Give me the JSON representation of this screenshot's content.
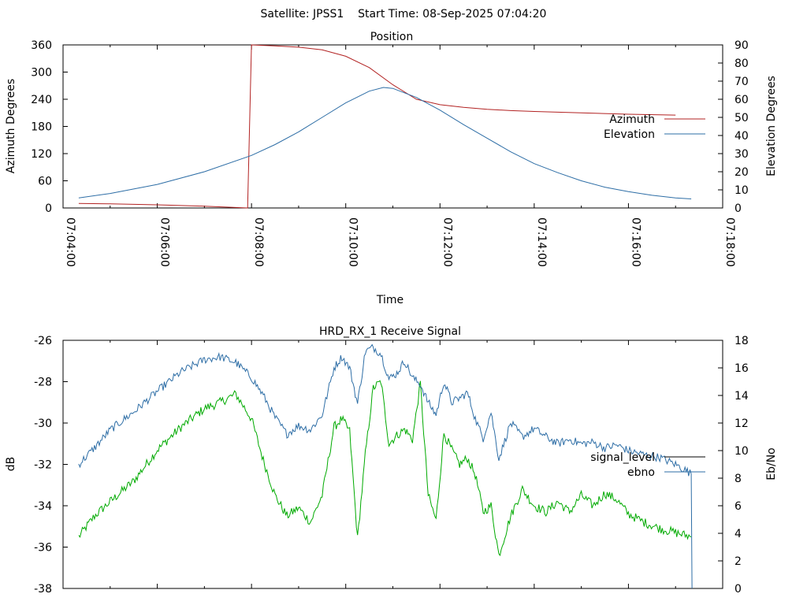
{
  "page": {
    "header": "Satellite: JPSS1    Start Time: 08-Sep-2025 07:04:20"
  },
  "chart_data": [
    {
      "type": "line",
      "title": "Position",
      "xlabel": "Time",
      "ylabel": "Azimuth Degrees",
      "y2label": "Elevation Degrees",
      "xticks": [
        "07:04:00",
        "07:06:00",
        "07:08:00",
        "07:10:00",
        "07:12:00",
        "07:14:00",
        "07:16:00",
        "07:18:00"
      ],
      "xlim": [
        "07:04:00",
        "07:18:00"
      ],
      "ylim": [
        0,
        360
      ],
      "yticks": [
        0,
        60,
        120,
        180,
        240,
        300,
        360
      ],
      "y2lim": [
        0,
        90
      ],
      "y2ticks": [
        0,
        10,
        20,
        30,
        40,
        50,
        60,
        70,
        80,
        90
      ],
      "legend_position": "right",
      "series": [
        {
          "name": "Azimuth",
          "axis": "y",
          "color": "#b22222",
          "x": [
            "07:04:20",
            "07:05:00",
            "07:06:00",
            "07:07:00",
            "07:07:55",
            "07:08:00",
            "07:08:30",
            "07:09:00",
            "07:09:30",
            "07:10:00",
            "07:10:30",
            "07:11:00",
            "07:11:30",
            "07:12:00",
            "07:12:30",
            "07:13:00",
            "07:13:30",
            "07:14:00",
            "07:15:00",
            "07:16:00",
            "07:17:00"
          ],
          "y": [
            10,
            9,
            7,
            4,
            0,
            360,
            358,
            355,
            349,
            335,
            310,
            272,
            240,
            228,
            222,
            218,
            215,
            213,
            210,
            207,
            205
          ]
        },
        {
          "name": "Elevation",
          "axis": "y2",
          "color": "#2e6ea6",
          "x": [
            "07:04:20",
            "07:05:00",
            "07:06:00",
            "07:07:00",
            "07:08:00",
            "07:08:30",
            "07:09:00",
            "07:09:30",
            "07:10:00",
            "07:10:30",
            "07:10:48",
            "07:11:00",
            "07:11:30",
            "07:12:00",
            "07:12:30",
            "07:13:00",
            "07:13:30",
            "07:14:00",
            "07:14:30",
            "07:15:00",
            "07:15:30",
            "07:16:00",
            "07:16:30",
            "07:17:00",
            "07:17:20"
          ],
          "y": [
            5.5,
            8,
            13,
            20,
            29,
            35,
            42,
            50,
            58,
            64.5,
            66.5,
            66,
            61,
            54,
            46,
            38.5,
            31,
            24.5,
            19.5,
            15,
            11.5,
            9,
            7,
            5.5,
            5
          ]
        }
      ]
    },
    {
      "type": "line",
      "title": "HRD_RX_1 Receive Signal",
      "xlabel": "",
      "ylabel": "dB",
      "y2label": "Eb/No",
      "xlim": [
        "07:04:00",
        "07:18:00"
      ],
      "ylim": [
        -38,
        -26
      ],
      "yticks": [
        -38,
        -36,
        -34,
        -32,
        -30,
        -28,
        -26
      ],
      "y2lim": [
        0,
        18
      ],
      "y2ticks": [
        0,
        2,
        4,
        6,
        8,
        10,
        12,
        14,
        16,
        18
      ],
      "legend_position": "right",
      "series": [
        {
          "name": "signal_level",
          "axis": "y",
          "color": "#00aa00",
          "legend_color": "#000000",
          "x": [
            "07:04:20",
            "07:04:40",
            "07:05:00",
            "07:05:30",
            "07:06:00",
            "07:06:30",
            "07:07:00",
            "07:07:20",
            "07:07:40",
            "07:08:00",
            "07:08:15",
            "07:08:30",
            "07:08:45",
            "07:09:00",
            "07:09:15",
            "07:09:30",
            "07:09:45",
            "07:09:55",
            "07:10:05",
            "07:10:15",
            "07:10:25",
            "07:10:35",
            "07:10:45",
            "07:10:55",
            "07:11:05",
            "07:11:15",
            "07:11:25",
            "07:11:35",
            "07:11:45",
            "07:11:55",
            "07:12:05",
            "07:12:15",
            "07:12:25",
            "07:12:35",
            "07:12:45",
            "07:12:55",
            "07:13:05",
            "07:13:15",
            "07:13:30",
            "07:13:45",
            "07:14:00",
            "07:14:15",
            "07:14:30",
            "07:14:45",
            "07:15:00",
            "07:15:15",
            "07:15:30",
            "07:15:45",
            "07:16:00",
            "07:16:20",
            "07:16:40",
            "07:17:00",
            "07:17:20"
          ],
          "y": [
            -35.5,
            -34.5,
            -33.8,
            -32.8,
            -31.3,
            -30.2,
            -29.3,
            -29.0,
            -28.6,
            -29.8,
            -31.8,
            -33.5,
            -34.5,
            -34.1,
            -34.8,
            -33.5,
            -30.2,
            -29.8,
            -30.4,
            -35.6,
            -31.5,
            -28.3,
            -28.0,
            -31.0,
            -30.6,
            -30.3,
            -30.8,
            -28.1,
            -33.5,
            -34.7,
            -30.5,
            -31.3,
            -32.0,
            -31.7,
            -32.5,
            -34.3,
            -34.0,
            -36.4,
            -34.5,
            -33.2,
            -34.0,
            -34.3,
            -33.8,
            -34.3,
            -33.5,
            -34.0,
            -33.4,
            -33.7,
            -34.4,
            -34.8,
            -35.1,
            -35.3,
            -35.5
          ]
        },
        {
          "name": "ebno",
          "axis": "y2",
          "color": "#2e6ea6",
          "legend_color": "#2e6ea6",
          "x": [
            "07:04:20",
            "07:04:40",
            "07:05:00",
            "07:05:30",
            "07:06:00",
            "07:06:30",
            "07:07:00",
            "07:07:20",
            "07:07:40",
            "07:08:00",
            "07:08:15",
            "07:08:30",
            "07:08:45",
            "07:09:00",
            "07:09:15",
            "07:09:30",
            "07:09:45",
            "07:09:55",
            "07:10:05",
            "07:10:15",
            "07:10:25",
            "07:10:35",
            "07:10:45",
            "07:10:55",
            "07:11:05",
            "07:11:15",
            "07:11:25",
            "07:11:35",
            "07:11:45",
            "07:11:55",
            "07:12:05",
            "07:12:15",
            "07:12:25",
            "07:12:35",
            "07:12:45",
            "07:12:55",
            "07:13:05",
            "07:13:15",
            "07:13:30",
            "07:13:45",
            "07:14:00",
            "07:14:15",
            "07:14:30",
            "07:14:45",
            "07:15:00",
            "07:15:15",
            "07:15:30",
            "07:15:45",
            "07:16:00",
            "07:16:20",
            "07:16:40",
            "07:17:00",
            "07:17:15",
            "07:17:20",
            "07:17:21"
          ],
          "y": [
            9.0,
            10.2,
            11.5,
            12.8,
            14.3,
            15.7,
            16.6,
            16.8,
            16.4,
            15.3,
            14.0,
            12.4,
            11.2,
            11.8,
            11.5,
            12.6,
            16.0,
            16.8,
            16.0,
            13.4,
            17.2,
            17.5,
            17.0,
            15.2,
            15.6,
            16.5,
            15.3,
            14.8,
            13.5,
            12.6,
            15.0,
            13.5,
            13.8,
            14.2,
            12.3,
            10.9,
            12.8,
            9.4,
            12.0,
            11.0,
            11.6,
            11.0,
            10.5,
            10.8,
            10.5,
            10.6,
            10.2,
            10.4,
            10.0,
            9.7,
            9.5,
            9.0,
            8.5,
            8.3,
            0.0
          ]
        }
      ]
    }
  ]
}
